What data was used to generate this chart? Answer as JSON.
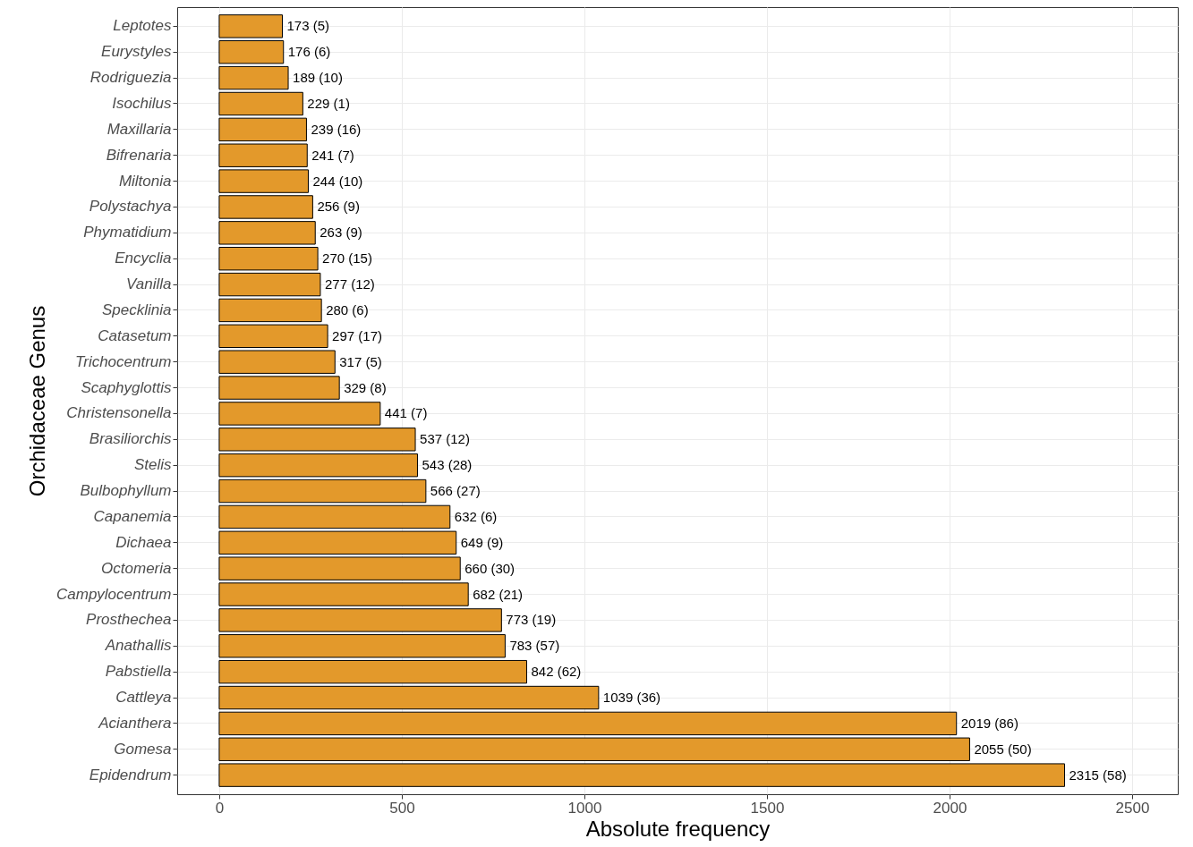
{
  "chart_data": {
    "type": "bar",
    "orientation": "horizontal",
    "xlabel": "Absolute frequency",
    "ylabel": "Orchidaceae Genus",
    "color": "#e3992b",
    "categories": [
      "Leptotes",
      "Eurystyles",
      "Rodriguezia",
      "Isochilus",
      "Maxillaria",
      "Bifrenaria",
      "Miltonia",
      "Polystachya",
      "Phymatidium",
      "Encyclia",
      "Vanilla",
      "Specklinia",
      "Catasetum",
      "Trichocentrum",
      "Scaphyglottis",
      "Christensonella",
      "Brasiliorchis",
      "Stelis",
      "Bulbophyllum",
      "Capanemia",
      "Dichaea",
      "Octomeria",
      "Campylocentrum",
      "Prosthechea",
      "Anathallis",
      "Pabstiella",
      "Cattleya",
      "Acianthera",
      "Gomesa",
      "Epidendrum"
    ],
    "values": [
      173,
      176,
      189,
      229,
      239,
      241,
      244,
      256,
      263,
      270,
      277,
      280,
      297,
      317,
      329,
      441,
      537,
      543,
      566,
      632,
      649,
      660,
      682,
      773,
      783,
      842,
      1039,
      2019,
      2055,
      2315
    ],
    "value_labels": [
      "173 (5)",
      "176 (6)",
      "189 (10)",
      "229 (1)",
      "239 (16)",
      "241 (7)",
      "244 (10)",
      "256 (9)",
      "263 (9)",
      "270 (15)",
      "277 (12)",
      "280 (6)",
      "297 (17)",
      "317 (5)",
      "329 (8)",
      "441 (7)",
      "537 (12)",
      "543 (28)",
      "566 (27)",
      "632 (6)",
      "649 (9)",
      "660 (30)",
      "682 (21)",
      "773 (19)",
      "783 (57)",
      "842 (62)",
      "1039 (36)",
      "2019 (86)",
      "2055 (50)",
      "2315 (58)"
    ],
    "xlim": [
      -115,
      2625
    ],
    "xticks": [
      0,
      500,
      1000,
      1500,
      2000,
      2500
    ],
    "grid": true
  }
}
